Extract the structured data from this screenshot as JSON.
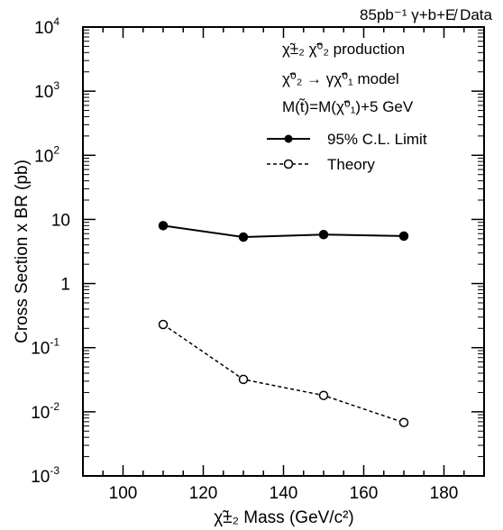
{
  "chart_data": {
    "type": "line",
    "header": "85pb⁻¹  γ+b+E̸ Data",
    "ylabel": "Cross Section x BR (pb)",
    "xlabel": "χ̃±₂ Mass (GeV/c²)",
    "annotations": [
      "χ̃±₂ χ̃⁰₂ production",
      "χ̃⁰₂ → γχ̃⁰₁ model",
      "M(t̃)=M(χ̃⁰₁)+5 GeV"
    ],
    "xlim": [
      90,
      190
    ],
    "ylim": [
      0.001,
      10000
    ],
    "yscale": "log",
    "x_ticks": [
      100,
      120,
      140,
      160,
      180
    ],
    "y_ticks": [
      {
        "base": "10",
        "exp": "4"
      },
      {
        "base": "10",
        "exp": "3"
      },
      {
        "base": "10",
        "exp": "2"
      },
      {
        "base": "10",
        "exp": ""
      },
      {
        "base": "1",
        "exp": ""
      },
      {
        "base": "10",
        "exp": "-1"
      },
      {
        "base": "10",
        "exp": "-2"
      },
      {
        "base": "10",
        "exp": "-3"
      }
    ],
    "legend_position": "upper-right",
    "series": [
      {
        "name": "95% C.L. Limit",
        "marker": "filled-circle",
        "line": "solid",
        "color": "#000000",
        "x": [
          110,
          130,
          150,
          170
        ],
        "y": [
          8.0,
          5.3,
          5.8,
          5.5
        ]
      },
      {
        "name": "Theory",
        "marker": "open-circle",
        "line": "dashed",
        "color": "#000000",
        "x": [
          110,
          130,
          150,
          170
        ],
        "y": [
          0.23,
          0.032,
          0.018,
          0.0068
        ]
      }
    ]
  }
}
